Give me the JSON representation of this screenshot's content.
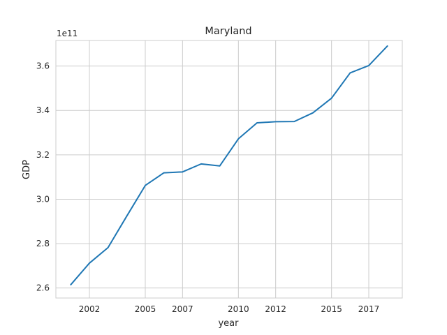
{
  "chart_data": {
    "type": "line",
    "title": "Maryland",
    "xlabel": "year",
    "ylabel": "GDP",
    "y_offset_label": "1e11",
    "x_ticks": [
      "2002",
      "2005",
      "2007",
      "2010",
      "2012",
      "2015",
      "2017"
    ],
    "y_ticks": [
      "2.6",
      "2.8",
      "3.0",
      "3.2",
      "3.4",
      "3.6"
    ],
    "xlim": [
      2000.2,
      2018.8
    ],
    "ylim": [
      2.555,
      3.715
    ],
    "grid": true,
    "color": "#1f77b4",
    "series": [
      {
        "x": [
          2001,
          2002,
          2003,
          2004,
          2005,
          2006,
          2007,
          2008,
          2009,
          2010,
          2011,
          2012,
          2013,
          2014,
          2015,
          2016,
          2017,
          2018
        ],
        "values": [
          2.615,
          2.712,
          2.782,
          2.923,
          3.062,
          3.119,
          3.123,
          3.159,
          3.15,
          3.272,
          3.344,
          3.349,
          3.35,
          3.389,
          3.455,
          3.569,
          3.602,
          3.69
        ]
      }
    ]
  }
}
